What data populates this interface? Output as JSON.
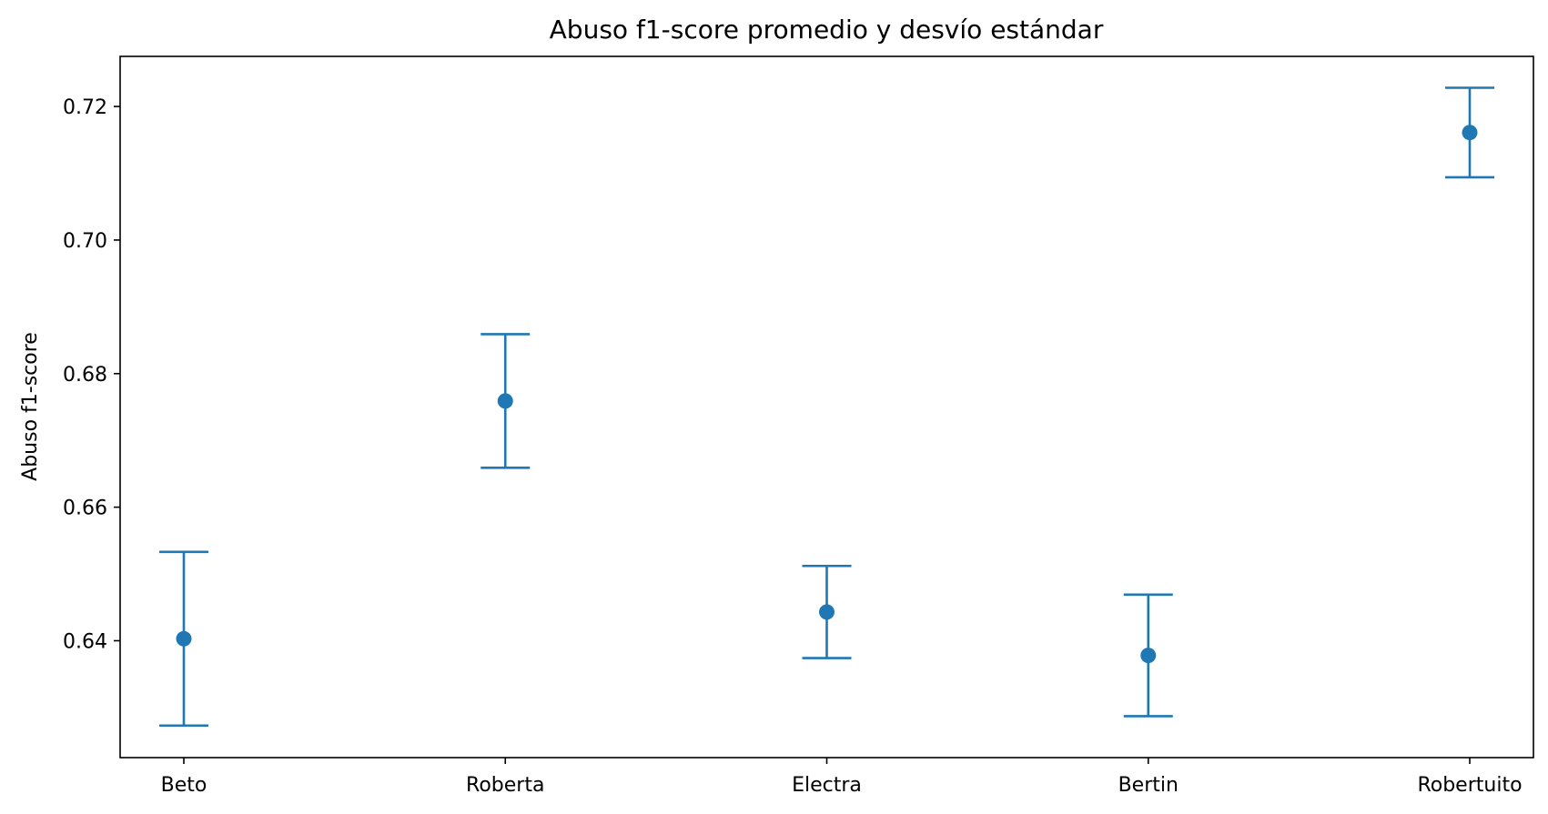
{
  "chart_data": {
    "type": "errorbar",
    "title": "Abuso f1-score promedio y desvío estándar",
    "xlabel": "",
    "ylabel": "Abuso f1-score",
    "categories": [
      "Beto",
      "Roberta",
      "Electra",
      "Bertin",
      "Robertuito"
    ],
    "series": [
      {
        "name": "Abuso f1-score",
        "values": [
          0.6403,
          0.6759,
          0.6443,
          0.6378,
          0.7161
        ],
        "std": [
          0.013,
          0.01,
          0.0069,
          0.0091,
          0.0067
        ]
      }
    ],
    "yticks": [
      0.64,
      0.66,
      0.68,
      0.7,
      0.72
    ],
    "ytick_labels": [
      "0.64",
      "0.66",
      "0.68",
      "0.70",
      "0.72"
    ],
    "ylim": [
      0.6225,
      0.7275
    ],
    "grid": false,
    "color": "#1f77b4"
  }
}
